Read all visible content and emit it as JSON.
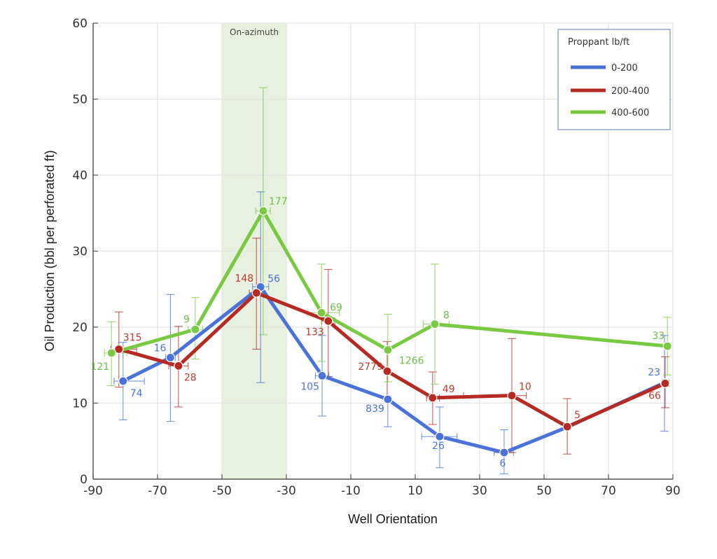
{
  "chart_data": {
    "type": "line",
    "title": "",
    "xlabel": "Well Orientation",
    "ylabel": "Oil Production (bbl per perforated ft)",
    "xlim": [
      -90,
      90
    ],
    "ylim": [
      0,
      60
    ],
    "xticks": [
      -90,
      -70,
      -50,
      -30,
      -10,
      10,
      30,
      50,
      70,
      90
    ],
    "yticks": [
      0,
      10,
      20,
      30,
      40,
      50,
      60
    ],
    "xtick_labels": [
      "-90",
      "-70",
      "-50",
      "-30",
      "-10",
      "10",
      "30",
      "50",
      "70",
      "90"
    ],
    "ytick_labels": [
      "0",
      "10",
      "20",
      "30",
      "40",
      "50",
      "60"
    ],
    "grid": true,
    "shaded_band": {
      "x_range": [
        -50,
        -30
      ],
      "label": "On-azimuth",
      "color": "#e8f0df"
    },
    "legend": {
      "title": "Proppant lb/ft",
      "placement": "top-right"
    },
    "series": [
      {
        "name": "0-200",
        "color": "#4a72d8",
        "label_color": "#4a72d8",
        "points": [
          {
            "x": -80.7,
            "y": 12.9,
            "y_low": 7.8,
            "y_high": 18.0,
            "x_low": -83.5,
            "x_high": -74.1,
            "label": "74"
          },
          {
            "x": -66.0,
            "y": 16.0,
            "y_low": 7.6,
            "y_high": 24.3,
            "x_low": -67.5,
            "x_high": -64.5,
            "label": "16"
          },
          {
            "x": -38.0,
            "y": 25.3,
            "y_low": 12.7,
            "y_high": 37.8,
            "x_low": -40.5,
            "x_high": -35.5,
            "label": "56"
          },
          {
            "x": -18.9,
            "y": 13.6,
            "y_low": 8.3,
            "y_high": 18.9,
            "x_low": -21.0,
            "x_high": -16.8,
            "label": "105"
          },
          {
            "x": 1.5,
            "y": 10.5,
            "y_low": 6.9,
            "y_high": 10.8,
            "x_low": 0.5,
            "x_high": 2.5,
            "label": "839"
          },
          {
            "x": 17.6,
            "y": 5.6,
            "y_low": 1.5,
            "y_high": 9.5,
            "x_low": 12.0,
            "x_high": 23.0,
            "label": "26"
          },
          {
            "x": 37.6,
            "y": 3.5,
            "y_low": 0.7,
            "y_high": 6.5,
            "x_low": 34.5,
            "x_high": 40.5,
            "label": "6"
          },
          {
            "x": 57.0,
            "y": 6.8,
            "y_low": 6.8,
            "y_high": 6.8,
            "x_low": 57.0,
            "x_high": 57.0,
            "label": ""
          },
          {
            "x": 87.4,
            "y": 12.7,
            "y_low": 6.3,
            "y_high": 18.9,
            "x_low": 86.5,
            "x_high": 88.4,
            "label": "23"
          }
        ]
      },
      {
        "name": "200-400",
        "color": "#b52a22",
        "label_color": "#c0392b",
        "points": [
          {
            "x": -82.0,
            "y": 17.1,
            "y_low": 12.1,
            "y_high": 22.0,
            "x_low": -84.5,
            "x_high": -76.5,
            "label": "315"
          },
          {
            "x": -63.5,
            "y": 14.9,
            "y_low": 9.5,
            "y_high": 20.1,
            "x_low": -66.5,
            "x_high": -60.5,
            "label": "28"
          },
          {
            "x": -39.3,
            "y": 24.5,
            "y_low": 17.1,
            "y_high": 31.7,
            "x_low": -41.5,
            "x_high": -37.0,
            "label": "148"
          },
          {
            "x": -17.0,
            "y": 20.8,
            "y_low": 13.5,
            "y_high": 27.6,
            "x_low": -19.0,
            "x_high": -15.0,
            "label": "133"
          },
          {
            "x": 1.3,
            "y": 14.2,
            "y_low": 10.9,
            "y_high": 18.1,
            "x_low": 0.5,
            "x_high": 2.0,
            "label": "2779"
          },
          {
            "x": 15.4,
            "y": 10.7,
            "y_low": 7.2,
            "y_high": 14.1,
            "x_low": 13.5,
            "x_high": 17.5,
            "label": "49"
          },
          {
            "x": 40.0,
            "y": 11.0,
            "y_low": 3.5,
            "y_high": 18.5,
            "x_low": 25.0,
            "x_high": 44.5,
            "label": "10"
          },
          {
            "x": 57.2,
            "y": 6.9,
            "y_low": 3.3,
            "y_high": 10.6,
            "x_low": 56.2,
            "x_high": 58.2,
            "label": "5"
          },
          {
            "x": 87.6,
            "y": 12.6,
            "y_low": 9.4,
            "y_high": 16.1,
            "x_low": 87.0,
            "x_high": 88.8,
            "label": "66"
          }
        ]
      },
      {
        "name": "400-600",
        "color": "#7ac943",
        "label_color": "#6cbf45",
        "points": [
          {
            "x": -84.3,
            "y": 16.6,
            "y_low": 12.3,
            "y_high": 20.7,
            "x_low": -86.5,
            "x_high": -79.5,
            "label": "121"
          },
          {
            "x": -58.3,
            "y": 19.7,
            "y_low": 15.8,
            "y_high": 23.9,
            "x_low": -60.5,
            "x_high": -56.0,
            "label": "9"
          },
          {
            "x": -37.2,
            "y": 35.3,
            "y_low": 19.0,
            "y_high": 51.5,
            "x_low": -39.5,
            "x_high": -35.0,
            "label": "177"
          },
          {
            "x": -19.1,
            "y": 21.9,
            "y_low": 15.5,
            "y_high": 28.3,
            "x_low": -23.5,
            "x_high": -13.5,
            "label": "69"
          },
          {
            "x": 1.5,
            "y": 17.0,
            "y_low": 12.8,
            "y_high": 21.7,
            "x_low": 0.5,
            "x_high": 2.5,
            "label": "1266"
          },
          {
            "x": 16.1,
            "y": 20.4,
            "y_low": 12.5,
            "y_high": 28.3,
            "x_low": 12.5,
            "x_high": 20.5,
            "label": "8"
          },
          {
            "x": 88.3,
            "y": 17.5,
            "y_low": 13.7,
            "y_high": 21.3,
            "x_low": 87.5,
            "x_high": 89.5,
            "label": "33"
          }
        ]
      }
    ]
  }
}
